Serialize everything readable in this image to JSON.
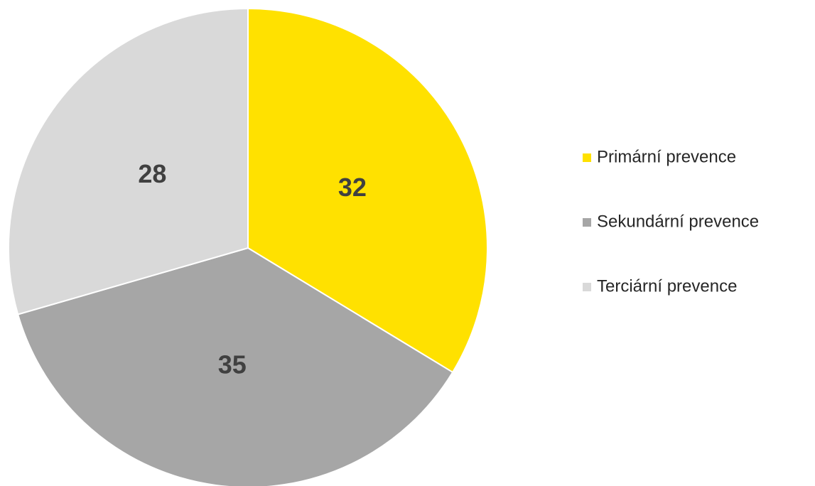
{
  "chart_data": {
    "type": "pie",
    "categories": [
      "Primární prevence",
      "Sekundární prevence",
      "Terciární prevence"
    ],
    "values": [
      32,
      35,
      28
    ],
    "colors": [
      "#ffe100",
      "#a6a6a6",
      "#d9d9d9"
    ],
    "legend": "right"
  }
}
